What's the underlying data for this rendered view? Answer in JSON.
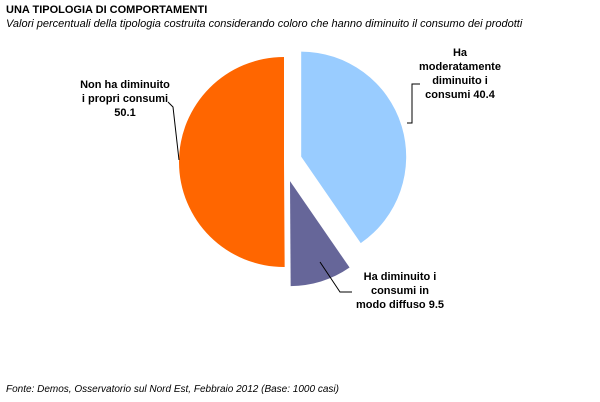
{
  "title": "UNA TIPOLOGIA DI COMPORTAMENTI",
  "subtitle": "Valori percentuali della tipologia costruita considerando coloro che hanno diminuito il consumo dei prodotti",
  "source": "Fonte: Demos, Osservatorio sul Nord Est, Febbraio 2012 (Base: 1000 casi)",
  "chart_data": {
    "type": "pie",
    "slices": [
      {
        "label_lines": [
          "Ha",
          "moderatamente",
          "diminuito i",
          "consumi 40.4"
        ],
        "value": 40.4,
        "color": "#99ccff"
      },
      {
        "label_lines": [
          "Ha diminuito i",
          "consumi in",
          "modo diffuso 9.5"
        ],
        "value": 9.5,
        "color": "#666699"
      },
      {
        "label_lines": [
          "Non ha diminuito",
          "i propri consumi",
          "50.1"
        ],
        "value": 50.1,
        "color": "#ff6600"
      }
    ]
  }
}
